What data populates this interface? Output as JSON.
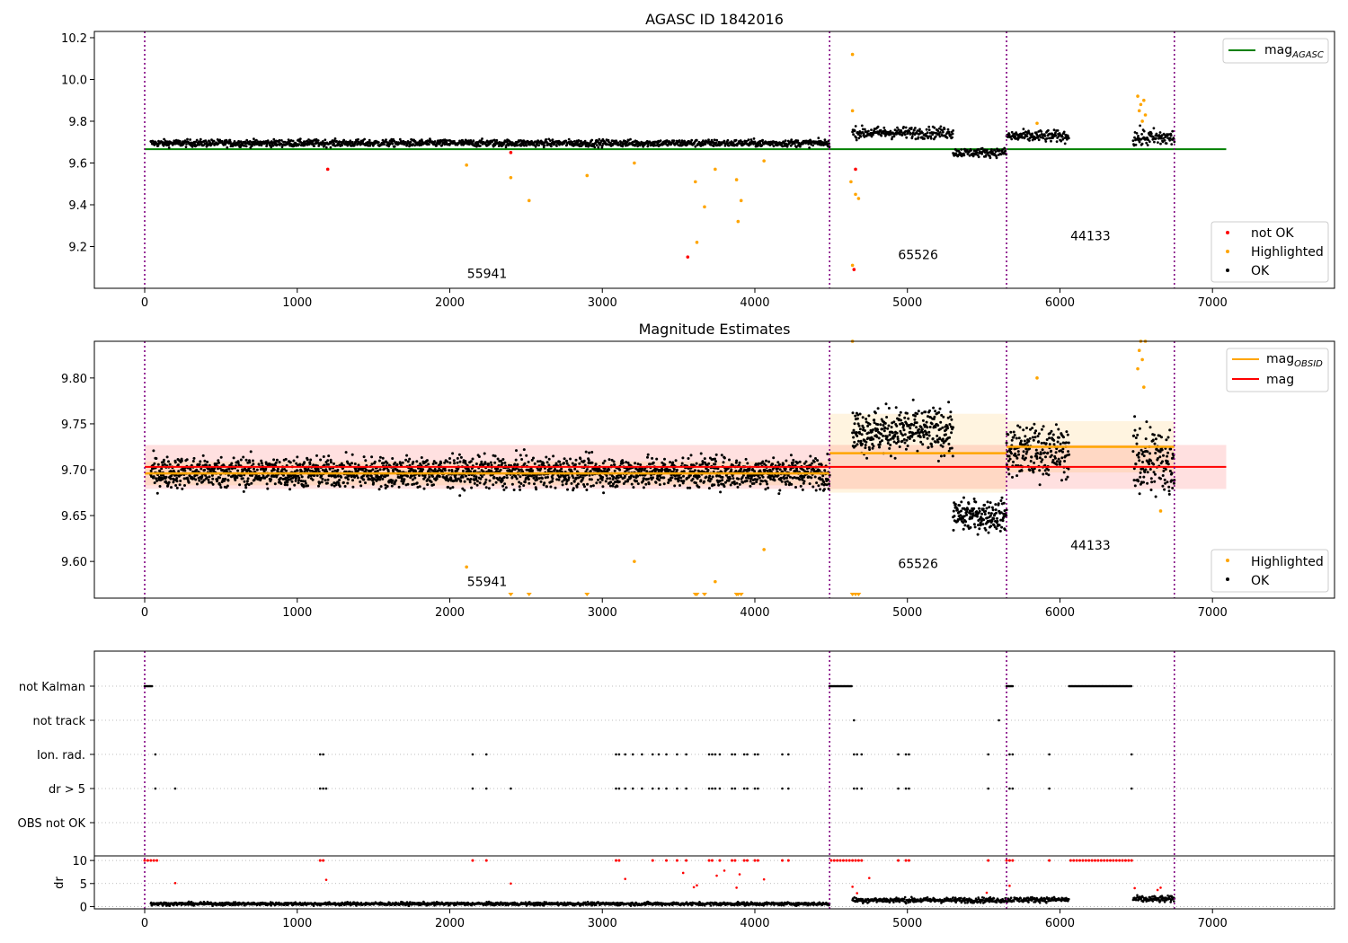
{
  "chart_data": [
    {
      "type": "scatter",
      "title": "AGASC ID 1842016",
      "xlim": [
        -330,
        7800
      ],
      "ylim": [
        9.0,
        10.23
      ],
      "x_ticks": [
        "0",
        "1000",
        "2000",
        "3000",
        "4000",
        "5000",
        "6000",
        "7000"
      ],
      "y_ticks": [
        "9.2",
        "9.4",
        "9.6",
        "9.8",
        "10.0",
        "10.2"
      ],
      "obsid_boundaries": [
        0,
        4490,
        5650,
        6750
      ],
      "obsid_labels": [
        {
          "text": "55941",
          "x": 2245,
          "y": 9.05
        },
        {
          "text": "65526",
          "x": 5070,
          "y": 9.14
        },
        {
          "text": "44133",
          "x": 6200,
          "y": 9.23
        }
      ],
      "reference_line": {
        "name": "mag_AGASC",
        "y": 9.666,
        "x_range": [
          0,
          7090
        ],
        "color": "#008000"
      },
      "ok_segments": [
        {
          "x": [
            40,
            4490
          ],
          "center": 9.695,
          "spread": 0.012
        },
        {
          "x": [
            4640,
            5300
          ],
          "center": 9.745,
          "spread": 0.02
        },
        {
          "x": [
            5300,
            5650
          ],
          "center": 9.65,
          "spread": 0.015
        },
        {
          "x": [
            5650,
            6060
          ],
          "center": 9.728,
          "spread": 0.02
        },
        {
          "x": [
            6480,
            6750
          ],
          "center": 9.72,
          "spread": 0.03
        }
      ],
      "highlighted_points": [
        {
          "x": 2110,
          "y": 9.59
        },
        {
          "x": 2400,
          "y": 9.53
        },
        {
          "x": 2520,
          "y": 9.42
        },
        {
          "x": 2900,
          "y": 9.54
        },
        {
          "x": 3210,
          "y": 9.6
        },
        {
          "x": 3610,
          "y": 9.51
        },
        {
          "x": 3620,
          "y": 9.22
        },
        {
          "x": 3670,
          "y": 9.39
        },
        {
          "x": 3740,
          "y": 9.57
        },
        {
          "x": 3880,
          "y": 9.52
        },
        {
          "x": 3890,
          "y": 9.32
        },
        {
          "x": 3910,
          "y": 9.42
        },
        {
          "x": 4060,
          "y": 9.61
        },
        {
          "x": 4640,
          "y": 10.12
        },
        {
          "x": 4640,
          "y": 9.85
        },
        {
          "x": 4630,
          "y": 9.51
        },
        {
          "x": 4660,
          "y": 9.45
        },
        {
          "x": 4680,
          "y": 9.43
        },
        {
          "x": 4640,
          "y": 9.11
        },
        {
          "x": 5850,
          "y": 9.79
        },
        {
          "x": 6510,
          "y": 9.92
        },
        {
          "x": 6530,
          "y": 9.88
        },
        {
          "x": 6550,
          "y": 9.9
        },
        {
          "x": 6520,
          "y": 9.85
        },
        {
          "x": 6560,
          "y": 9.83
        },
        {
          "x": 6540,
          "y": 9.8
        }
      ],
      "not_ok_points": [
        {
          "x": 1200,
          "y": 9.57
        },
        {
          "x": 2400,
          "y": 9.65
        },
        {
          "x": 3560,
          "y": 9.15
        },
        {
          "x": 4660,
          "y": 9.57
        },
        {
          "x": 4650,
          "y": 9.09
        }
      ],
      "legend_upper": {
        "entries": [
          "mag_AGASC"
        ],
        "placement": "upper right"
      },
      "legend_lower": {
        "entries": [
          "not OK",
          "Highlighted",
          "OK"
        ],
        "placement": "lower right"
      }
    },
    {
      "type": "scatter",
      "title": "Magnitude Estimates",
      "xlim": [
        -330,
        7800
      ],
      "ylim": [
        9.56,
        9.84
      ],
      "x_ticks": [
        "0",
        "1000",
        "2000",
        "3000",
        "4000",
        "5000",
        "6000",
        "7000"
      ],
      "y_ticks": [
        "9.60",
        "9.65",
        "9.70",
        "9.75",
        "9.80"
      ],
      "obsid_boundaries": [
        0,
        4490,
        5650,
        6750
      ],
      "obsid_labels": [
        {
          "text": "55941",
          "x": 2245,
          "y": 9.573
        },
        {
          "text": "65526",
          "x": 5070,
          "y": 9.593
        },
        {
          "text": "44133",
          "x": 6200,
          "y": 9.613
        }
      ],
      "mag_line": {
        "name": "mag",
        "y": 9.703,
        "band": [
          9.679,
          9.727
        ],
        "x_range": [
          0,
          7090
        ],
        "color": "#ff0000"
      },
      "obsid_mags": [
        {
          "x": [
            0,
            4490
          ],
          "y": 9.696,
          "band": [
            9.683,
            9.709
          ]
        },
        {
          "x": [
            4490,
            5650
          ],
          "y": 9.718,
          "band": [
            9.675,
            9.761
          ]
        },
        {
          "x": [
            5650,
            6750
          ],
          "y": 9.725,
          "band": [
            9.697,
            9.753
          ]
        }
      ],
      "ok_segments": [
        {
          "x": [
            40,
            4490
          ],
          "center": 9.697,
          "spread": 0.012
        },
        {
          "x": [
            4640,
            5300
          ],
          "center": 9.742,
          "spread": 0.018
        },
        {
          "x": [
            5300,
            5650
          ],
          "center": 9.65,
          "spread": 0.012
        },
        {
          "x": [
            5650,
            6060
          ],
          "center": 9.72,
          "spread": 0.02
        },
        {
          "x": [
            6480,
            6750
          ],
          "center": 9.71,
          "spread": 0.03
        }
      ],
      "highlighted_points": [
        {
          "x": 2110,
          "y": 9.594
        },
        {
          "x": 3210,
          "y": 9.6
        },
        {
          "x": 3740,
          "y": 9.578
        },
        {
          "x": 4060,
          "y": 9.613
        },
        {
          "x": 5850,
          "y": 9.8
        },
        {
          "x": 6660,
          "y": 9.655
        },
        {
          "x": 6520,
          "y": 9.83
        },
        {
          "x": 6540,
          "y": 9.82
        },
        {
          "x": 6510,
          "y": 9.81
        },
        {
          "x": 6550,
          "y": 9.79
        },
        {
          "x": 6560,
          "y": 9.84
        },
        {
          "x": 6530,
          "y": 9.84
        },
        {
          "x": 4640,
          "y": 9.84
        }
      ],
      "off_axis_low_x": [
        2400,
        2520,
        2900,
        3610,
        3620,
        3670,
        3880,
        3890,
        3910,
        4640,
        4660,
        4680
      ],
      "legend_upper": {
        "entries": [
          "mag_OBSID",
          "mag"
        ],
        "placement": "upper right"
      },
      "legend_lower": {
        "entries": [
          "Highlighted",
          "OK"
        ],
        "placement": "lower right"
      }
    },
    {
      "type": "scatter",
      "title": "",
      "xlim": [
        -330,
        7800
      ],
      "x_ticks": [
        "0",
        "1000",
        "2000",
        "3000",
        "4000",
        "5000",
        "6000",
        "7000"
      ],
      "flag_rows": [
        "not Kalman",
        "not track",
        "Ion. rad.",
        "dr > 5",
        "OBS not OK"
      ],
      "obsid_boundaries": [
        0,
        4490,
        5650,
        6750
      ],
      "flags": {
        "not Kalman": {
          "ranges": [
            [
              0,
              50
            ],
            [
              4490,
              4640
            ],
            [
              5650,
              5690
            ],
            [
              6060,
              6470
            ]
          ]
        },
        "not track": {
          "points": [
            4650,
            5600
          ]
        },
        "Ion. rad.": {
          "points": [
            70,
            1150,
            1170,
            2150,
            2240,
            3090,
            3110,
            3150,
            3200,
            3260,
            3330,
            3370,
            3420,
            3490,
            3550,
            3700,
            3720,
            3740,
            3770,
            3850,
            3870,
            3930,
            3950,
            4000,
            4020,
            4180,
            4220,
            4650,
            4670,
            4700,
            4940,
            4990,
            5010,
            5530,
            5670,
            5690,
            5930,
            6470
          ]
        },
        "dr > 5": {
          "points": [
            70,
            200,
            1150,
            1170,
            1190,
            2150,
            2240,
            2400,
            3090,
            3110,
            3150,
            3200,
            3260,
            3330,
            3370,
            3420,
            3490,
            3550,
            3700,
            3720,
            3740,
            3770,
            3850,
            3870,
            3930,
            3950,
            4000,
            4020,
            4180,
            4220,
            4650,
            4670,
            4700,
            4940,
            4990,
            5010,
            5530,
            5670,
            5690,
            5930,
            6470
          ]
        },
        "OBS not OK": {
          "points": []
        }
      },
      "dr_axis": {
        "label": "dr",
        "y_ticks": [
          "0",
          "5",
          "10"
        ],
        "ylim": [
          -0.5,
          11
        ]
      },
      "dr_segments": [
        {
          "x": [
            40,
            4490
          ],
          "center": 0.6,
          "spread": 0.25
        },
        {
          "x": [
            4640,
            5650
          ],
          "center": 1.4,
          "spread": 0.4
        },
        {
          "x": [
            5650,
            6060
          ],
          "center": 1.5,
          "spread": 0.4
        },
        {
          "x": [
            6480,
            6750
          ],
          "center": 1.6,
          "spread": 0.5
        }
      ],
      "dr_capped": [
        0,
        20,
        40,
        60,
        80,
        1150,
        1170,
        2150,
        2240,
        3090,
        3110,
        3330,
        3420,
        3490,
        3550,
        3700,
        3720,
        3770,
        3850,
        3870,
        3930,
        3950,
        4000,
        4020,
        4180,
        4220,
        4500,
        4520,
        4540,
        4560,
        4580,
        4600,
        4620,
        4640,
        4660,
        4680,
        4700,
        4940,
        4990,
        5010,
        5530,
        5650,
        5670,
        5690,
        5930,
        6070,
        6090,
        6110,
        6130,
        6150,
        6170,
        6190,
        6210,
        6230,
        6250,
        6270,
        6290,
        6310,
        6330,
        6350,
        6370,
        6390,
        6410,
        6430,
        6450,
        6470
      ],
      "dr_red_scatter": [
        {
          "x": 200,
          "y": 5.1
        },
        {
          "x": 1190,
          "y": 5.8
        },
        {
          "x": 2400,
          "y": 5.0
        },
        {
          "x": 3150,
          "y": 6.0
        },
        {
          "x": 3530,
          "y": 7.3
        },
        {
          "x": 3600,
          "y": 4.2
        },
        {
          "x": 3620,
          "y": 4.6
        },
        {
          "x": 3750,
          "y": 6.7
        },
        {
          "x": 3800,
          "y": 7.8
        },
        {
          "x": 3880,
          "y": 4.1
        },
        {
          "x": 3900,
          "y": 7.0
        },
        {
          "x": 4060,
          "y": 5.9
        },
        {
          "x": 4640,
          "y": 4.3
        },
        {
          "x": 4670,
          "y": 2.9
        },
        {
          "x": 4750,
          "y": 6.2
        },
        {
          "x": 5520,
          "y": 3.0
        },
        {
          "x": 5670,
          "y": 4.5
        },
        {
          "x": 6490,
          "y": 4.0
        },
        {
          "x": 6640,
          "y": 3.6
        },
        {
          "x": 6660,
          "y": 4.1
        }
      ]
    }
  ],
  "colors": {
    "ok": "#000000",
    "highlighted": "#ffa500",
    "not_ok": "#ff0000",
    "mag_agasc": "#008000",
    "mag_obsid": "#ffa500",
    "mag": "#ff0000",
    "boundary": "#800080"
  }
}
